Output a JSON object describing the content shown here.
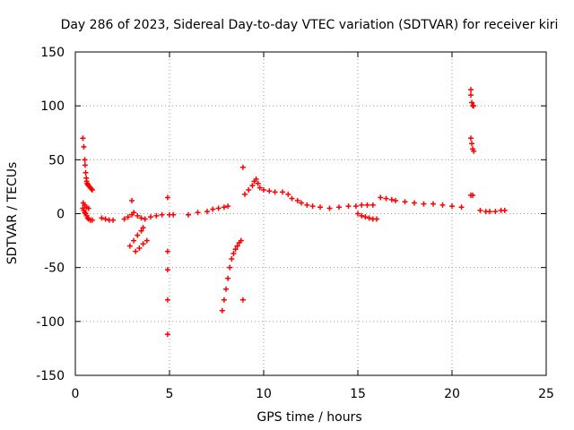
{
  "chart_data": {
    "type": "scatter",
    "title": "Day 286 of 2023, Sidereal Day-to-day VTEC variation (SDTVAR) for receiver kiri",
    "xlabel": "GPS time / hours",
    "ylabel": "SDTVAR / TECUs",
    "xlim": [
      0,
      25
    ],
    "ylim": [
      -150,
      150
    ],
    "xticks": [
      0,
      5,
      10,
      15,
      20,
      25
    ],
    "yticks": [
      -150,
      -100,
      -50,
      0,
      50,
      100,
      150
    ],
    "grid": true,
    "marker": "+",
    "color": "#ff0000",
    "series": [
      {
        "name": "SDTVAR",
        "x": [
          0.4,
          0.45,
          0.5,
          0.52,
          0.55,
          0.58,
          0.6,
          0.63,
          0.66,
          0.7,
          0.75,
          0.8,
          0.85,
          0.9,
          0.4,
          0.45,
          0.5,
          0.55,
          0.6,
          0.65,
          0.7,
          0.8,
          0.9,
          0.42,
          0.5,
          0.6,
          0.7,
          1.4,
          1.6,
          1.8,
          2.0,
          2.6,
          2.8,
          3.0,
          3.1,
          3.3,
          3.5,
          3.7,
          2.9,
          3.1,
          3.3,
          3.5,
          3.6,
          3.2,
          3.4,
          3.6,
          3.8,
          3.0,
          4.0,
          4.3,
          4.6,
          4.9,
          4.9,
          4.9,
          4.9,
          4.9,
          5.0,
          5.2,
          6.0,
          6.5,
          7.0,
          7.3,
          7.6,
          7.9,
          8.1,
          7.8,
          7.9,
          8.0,
          8.1,
          8.2,
          8.3,
          8.4,
          8.5,
          8.6,
          8.7,
          8.8,
          8.9,
          8.9,
          9.0,
          9.2,
          9.4,
          9.5,
          9.6,
          9.7,
          9.8,
          10.0,
          10.3,
          10.6,
          11.0,
          11.3,
          11.5,
          11.8,
          12.0,
          12.3,
          12.6,
          13.0,
          13.5,
          14.0,
          14.5,
          14.9,
          15.2,
          15.5,
          15.8,
          15.0,
          15.2,
          15.4,
          15.6,
          15.8,
          16.0,
          16.2,
          16.5,
          16.8,
          17.0,
          17.5,
          18.0,
          18.5,
          19.0,
          19.5,
          20.0,
          20.5,
          21.0,
          21.0,
          21.05,
          21.1,
          21.15,
          21.0,
          21.05,
          21.1,
          21.15,
          21.0,
          21.1,
          21.5,
          21.8,
          22.0,
          22.3,
          22.6,
          22.8
        ],
        "y": [
          70,
          62,
          50,
          45,
          38,
          33,
          30,
          28,
          27,
          26,
          25,
          24,
          23,
          22,
          5,
          3,
          1,
          0,
          -2,
          -4,
          -5,
          -6,
          -6,
          10,
          8,
          6,
          5,
          -4,
          -5,
          -6,
          -6,
          -5,
          -3,
          -1,
          1,
          -2,
          -4,
          -5,
          -30,
          -25,
          -20,
          -16,
          -13,
          -35,
          -32,
          -28,
          -25,
          12,
          -3,
          -2,
          -1,
          15,
          -35,
          -52,
          -80,
          -112,
          -1,
          -1,
          -1,
          1,
          2,
          4,
          5,
          6,
          7,
          -90,
          -80,
          -70,
          -60,
          -50,
          -42,
          -37,
          -33,
          -30,
          -27,
          -25,
          43,
          -80,
          18,
          22,
          26,
          30,
          32,
          28,
          24,
          22,
          21,
          20,
          20,
          18,
          14,
          12,
          10,
          8,
          7,
          6,
          5,
          6,
          7,
          7,
          8,
          8,
          8,
          0,
          -2,
          -3,
          -4,
          -5,
          -5,
          15,
          14,
          13,
          12,
          11,
          10,
          9,
          9,
          8,
          7,
          6,
          115,
          110,
          103,
          100,
          100,
          70,
          65,
          60,
          58,
          17,
          17,
          3,
          2,
          2,
          2,
          3,
          3
        ]
      }
    ]
  }
}
